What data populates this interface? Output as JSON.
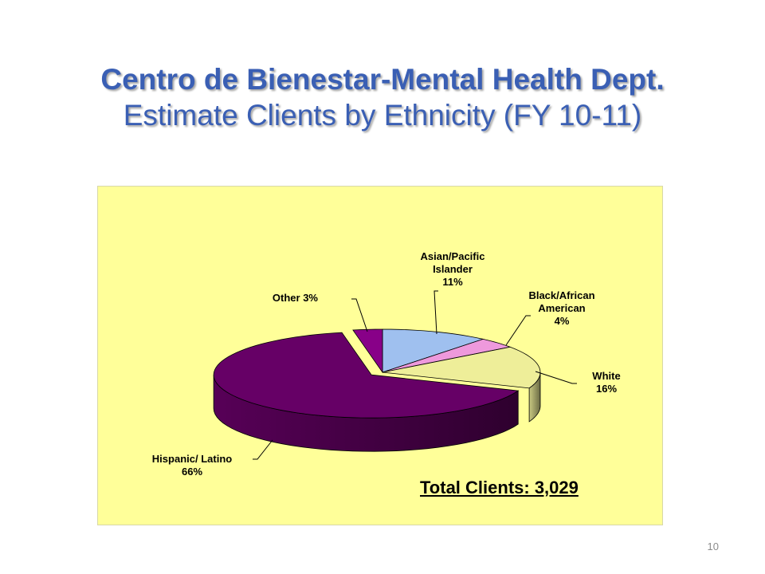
{
  "slide": {
    "title_line1": "Centro de Bienestar-Mental Health Dept.",
    "title_line2": "Estimate Clients by Ethnicity (FY 10-11)",
    "page_number": "10"
  },
  "chart_data": {
    "type": "pie",
    "style": "3d-exploded",
    "total_label": "Total Clients: 3,029",
    "slices": [
      {
        "key": "asian",
        "name": "Asian/Pacific Islander",
        "label_lines": [
          "Asian/Pacific",
          "Islander",
          "11%"
        ],
        "value": 11,
        "color": "#9fc0ef"
      },
      {
        "key": "black",
        "name": "Black/African American",
        "label_lines": [
          "Black/African",
          "American",
          "4%"
        ],
        "value": 4,
        "color": "#ee99dc"
      },
      {
        "key": "white",
        "name": "White",
        "label_lines": [
          "White",
          "16%"
        ],
        "value": 16,
        "color": "#eeee99"
      },
      {
        "key": "hispanic",
        "name": "Hispanic/ Latino",
        "label_lines": [
          "Hispanic/ Latino",
          "66%"
        ],
        "value": 66,
        "color": "#660066"
      },
      {
        "key": "other",
        "name": "Other",
        "label_lines": [
          "Other 3%"
        ],
        "value": 3,
        "color": "#880088"
      }
    ],
    "legend": "none (leader-line labels)",
    "background_color": "#ffff99"
  }
}
